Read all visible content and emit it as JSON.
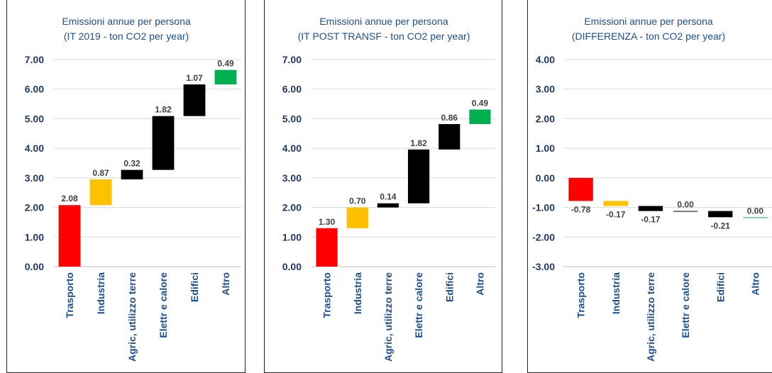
{
  "colors": {
    "grid": "#d9d9d9",
    "axis": "#bfbfbf",
    "title": "#1f4e8c",
    "tick": "#1f3864",
    "label": "#404040"
  },
  "chart_data": [
    {
      "type": "bar",
      "subtype": "waterfall",
      "title": "Emissioni annue per persona",
      "subtitle": "(IT 2019 - ton CO2 per year)",
      "categories": [
        "Trasporto",
        "Industria",
        "Agric, utilizzo terre",
        "Elettr e calore",
        "Edifici",
        "Altro"
      ],
      "values": [
        2.08,
        0.87,
        0.32,
        1.82,
        1.07,
        0.49
      ],
      "labels": [
        "2.08",
        "0.87",
        "0.32",
        "1.82",
        "1.07",
        "0.49"
      ],
      "colors": [
        "#ff0000",
        "#ffc000",
        "#000000",
        "#000000",
        "#000000",
        "#00b050"
      ],
      "ylim": [
        0,
        7
      ],
      "yticks": [
        "0.00",
        "1.00",
        "2.00",
        "3.00",
        "4.00",
        "5.00",
        "6.00",
        "7.00"
      ],
      "grid": true,
      "legend": "none"
    },
    {
      "type": "bar",
      "subtype": "waterfall",
      "title": "Emissioni annue per persona",
      "subtitle": "(IT POST TRANSF - ton CO2 per year)",
      "categories": [
        "Trasporto",
        "Industria",
        "Agric, utilizzo terre",
        "Elettr e calore",
        "Edifici",
        "Altro"
      ],
      "values": [
        1.3,
        0.7,
        0.14,
        1.82,
        0.86,
        0.49
      ],
      "labels": [
        "1.30",
        "0.70",
        "0.14",
        "1.82",
        "0.86",
        "0.49"
      ],
      "colors": [
        "#ff0000",
        "#ffc000",
        "#000000",
        "#000000",
        "#000000",
        "#00b050"
      ],
      "ylim": [
        0,
        7
      ],
      "yticks": [
        "0.00",
        "1.00",
        "2.00",
        "3.00",
        "4.00",
        "5.00",
        "6.00",
        "7.00"
      ],
      "grid": true,
      "legend": "none"
    },
    {
      "type": "bar",
      "subtype": "waterfall",
      "title": "Emissioni annue per persona",
      "subtitle": "(DIFFERENZA - ton CO2 per year)",
      "categories": [
        "Trasporto",
        "Industria",
        "Agric, utilizzo terre",
        "Elettr e calore",
        "Edifici",
        "Altro"
      ],
      "values": [
        -0.78,
        -0.17,
        -0.17,
        0.0,
        -0.21,
        0.0
      ],
      "labels": [
        "-0.78",
        "-0.17",
        "-0.17",
        "0.00",
        "-0.21",
        "0.00"
      ],
      "colors": [
        "#ff0000",
        "#ffc000",
        "#000000",
        "#000000",
        "#000000",
        "#00b050"
      ],
      "ylim": [
        -3,
        4
      ],
      "yticks": [
        "-3.00",
        "-2.00",
        "-1.00",
        "0.00",
        "1.00",
        "2.00",
        "3.00",
        "4.00"
      ],
      "grid": true,
      "legend": "none"
    }
  ]
}
